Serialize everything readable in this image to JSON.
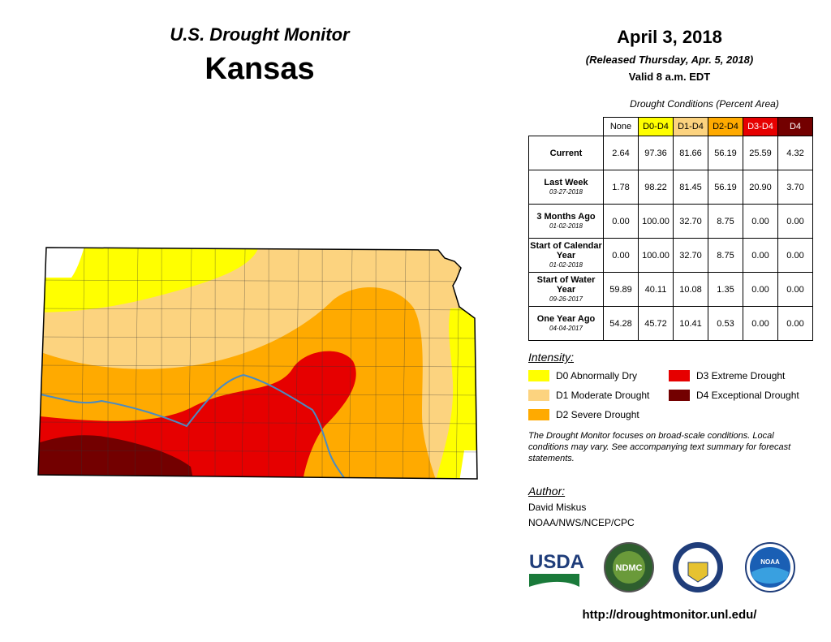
{
  "header": {
    "program": "U.S. Drought Monitor",
    "state": "Kansas"
  },
  "date": {
    "title": "April 3, 2018",
    "released": "(Released Thursday, Apr. 5, 2018)",
    "valid": "Valid 8 a.m. EDT"
  },
  "table": {
    "caption": "Drought Conditions (Percent Area)",
    "columns": [
      {
        "name": "None",
        "color": "#ffffff"
      },
      {
        "name": "D0-D4",
        "color": "#ffff00"
      },
      {
        "name": "D1-D4",
        "color": "#fcd37f"
      },
      {
        "name": "D2-D4",
        "color": "#ffaa00"
      },
      {
        "name": "D3-D4",
        "color": "#e60000"
      },
      {
        "name": "D4",
        "color": "#730000"
      }
    ],
    "rows": [
      {
        "label": "Current",
        "values": [
          "2.64",
          "97.36",
          "81.66",
          "56.19",
          "25.59",
          "4.32"
        ]
      },
      {
        "label": "Last Week",
        "date": "03-27-2018",
        "values": [
          "1.78",
          "98.22",
          "81.45",
          "56.19",
          "20.90",
          "3.70"
        ]
      },
      {
        "label": "3 Months Ago",
        "date": "01-02-2018",
        "values": [
          "0.00",
          "100.00",
          "32.70",
          "8.75",
          "0.00",
          "0.00"
        ]
      },
      {
        "label": "Start of Calendar Year",
        "date": "01-02-2018",
        "values": [
          "0.00",
          "100.00",
          "32.70",
          "8.75",
          "0.00",
          "0.00"
        ]
      },
      {
        "label": "Start of Water Year",
        "date": "09-26-2017",
        "values": [
          "59.89",
          "40.11",
          "10.08",
          "1.35",
          "0.00",
          "0.00"
        ]
      },
      {
        "label": "One Year Ago",
        "date": "04-04-2017",
        "values": [
          "54.28",
          "45.72",
          "10.41",
          "0.53",
          "0.00",
          "0.00"
        ]
      }
    ]
  },
  "legend": {
    "title": "Intensity:",
    "items": [
      {
        "label": "D0 Abnormally Dry",
        "color": "#ffff00"
      },
      {
        "label": "D1 Moderate Drought",
        "color": "#fcd37f"
      },
      {
        "label": "D2 Severe Drought",
        "color": "#ffaa00"
      },
      {
        "label": "D3 Extreme Drought",
        "color": "#e60000"
      },
      {
        "label": "D4 Exceptional Drought",
        "color": "#730000"
      }
    ]
  },
  "note": "The Drought Monitor focuses on broad-scale conditions. Local conditions may vary. See accompanying text summary for forecast statements.",
  "author": {
    "title": "Author:",
    "name": "David Miskus",
    "org": "NOAA/NWS/NCEP/CPC"
  },
  "logos": {
    "usda": "USDA",
    "ndmc": "NDMC",
    "noaa": "NOAA"
  },
  "url": "http://droughtmonitor.unl.edu/"
}
